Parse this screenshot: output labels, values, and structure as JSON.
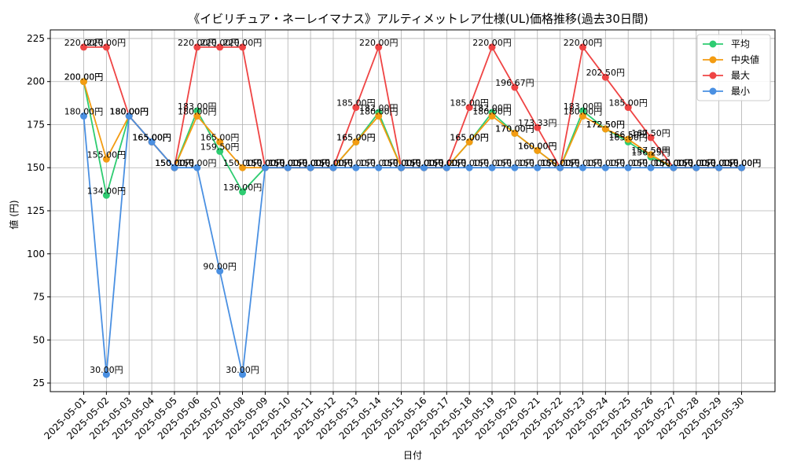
{
  "chart_data": {
    "type": "line",
    "title": "《イビリチュア・ネーレイマナス》アルティメットレア仕様(UL)価格推移(過去30日間)",
    "xlabel": "日付",
    "ylabel": "値 (円)",
    "ylim": [
      20,
      230
    ],
    "yticks": [
      25,
      50,
      75,
      100,
      125,
      150,
      175,
      200,
      225
    ],
    "grid": true,
    "legend_position": "top-right",
    "label_suffix": "円",
    "categories": [
      "2025-05-01",
      "2025-05-02",
      "2025-05-03",
      "2025-05-04",
      "2025-05-05",
      "2025-05-06",
      "2025-05-07",
      "2025-05-08",
      "2025-05-09",
      "2025-05-10",
      "2025-05-11",
      "2025-05-12",
      "2025-05-13",
      "2025-05-14",
      "2025-05-15",
      "2025-05-16",
      "2025-05-17",
      "2025-05-18",
      "2025-05-19",
      "2025-05-20",
      "2025-05-21",
      "2025-05-22",
      "2025-05-23",
      "2025-05-24",
      "2025-05-25",
      "2025-05-26",
      "2025-05-27",
      "2025-05-28",
      "2025-05-29",
      "2025-05-30"
    ],
    "series": [
      {
        "name": "平均",
        "color": "#2ecc71",
        "values": [
          200,
          134,
          180,
          165,
          150,
          183,
          159.5,
          136,
          150,
          150,
          150,
          150,
          165,
          182,
          150,
          150,
          150,
          165,
          182,
          170,
          160,
          150,
          183,
          172.5,
          165,
          156.25,
          150,
          150,
          150,
          150
        ]
      },
      {
        "name": "中央値",
        "color": "#f39c12",
        "values": [
          200,
          155,
          180,
          165,
          150,
          180,
          165,
          150,
          150,
          150,
          150,
          150,
          165,
          180,
          150,
          150,
          150,
          165,
          180,
          170,
          160,
          150,
          180,
          172.5,
          166.5,
          157.5,
          150,
          150,
          150,
          150
        ]
      },
      {
        "name": "最大",
        "color": "#ef4444",
        "values": [
          220,
          220,
          180,
          165,
          150,
          220,
          220,
          220,
          150,
          150,
          150,
          150,
          185,
          220,
          150,
          150,
          150,
          185,
          220,
          196.67,
          173.33,
          150,
          220,
          202.5,
          185,
          167.5,
          150,
          150,
          150,
          150
        ]
      },
      {
        "name": "最小",
        "color": "#4a90e2",
        "values": [
          180,
          30,
          180,
          165,
          150,
          150,
          90,
          30,
          150,
          150,
          150,
          150,
          150,
          150,
          150,
          150,
          150,
          150,
          150,
          150,
          150,
          150,
          150,
          150,
          150,
          150,
          150,
          150,
          150,
          150
        ]
      }
    ]
  }
}
